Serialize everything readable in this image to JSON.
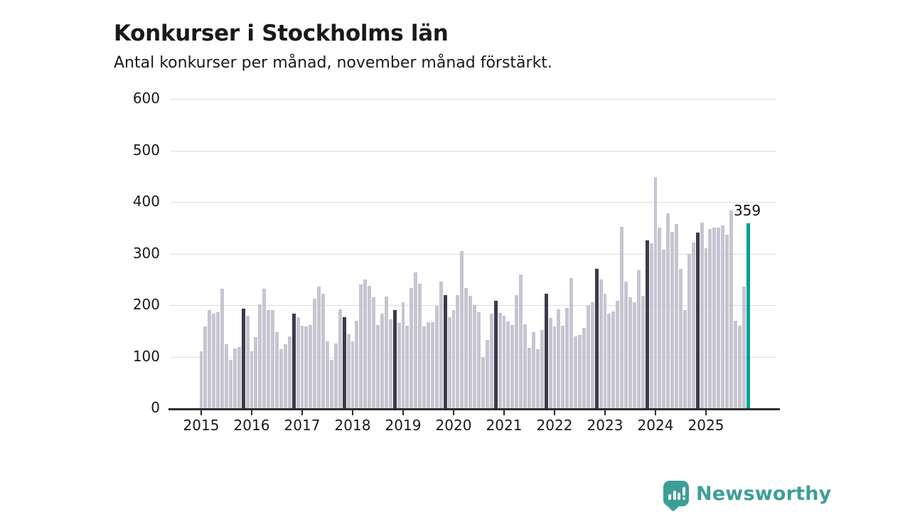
{
  "header": {
    "title": "Konkurser i Stockholms län",
    "subtitle": "Antal konkurser per månad, november månad förstärkt."
  },
  "footer": {
    "brand": "Newsworthy"
  },
  "colors": {
    "bar": "#c8c5d2",
    "november": "#3b3b4b",
    "highlight": "#00a099",
    "axis": "#2e2e2e",
    "grid": "#dcdcdc",
    "brand_teal": "#3d9e97",
    "text": "#1a1a1a"
  },
  "chart_data": {
    "type": "bar",
    "title": "Konkurser i Stockholms län",
    "subtitle": "Antal konkurser per månad, november månad förstärkt.",
    "ylabel": "",
    "xlabel": "",
    "ylim": [
      0,
      600
    ],
    "yticks": [
      0,
      100,
      200,
      300,
      400,
      500,
      600
    ],
    "xtick_years": [
      "2015",
      "2016",
      "2017",
      "2018",
      "2019",
      "2020",
      "2021",
      "2022",
      "2023",
      "2024",
      "2025"
    ],
    "grid": "horizontal",
    "legend": "none",
    "november_index": 10,
    "highlight": {
      "year": 2025,
      "month_index": 10,
      "value": 359,
      "label": "359"
    },
    "series": [
      {
        "year": 2015,
        "values": [
          110,
          158,
          190,
          184,
          186,
          232,
          124,
          94,
          116,
          118,
          193,
          180
        ]
      },
      {
        "year": 2016,
        "values": [
          110,
          138,
          202,
          232,
          190,
          191,
          148,
          114,
          124,
          139,
          183,
          176
        ]
      },
      {
        "year": 2017,
        "values": [
          160,
          158,
          161,
          212,
          236,
          222,
          129,
          94,
          125,
          192,
          177,
          143
        ]
      },
      {
        "year": 2018,
        "values": [
          130,
          170,
          240,
          250,
          237,
          215,
          162,
          183,
          217,
          172,
          190,
          165
        ]
      },
      {
        "year": 2019,
        "values": [
          205,
          160,
          233,
          264,
          242,
          159,
          167,
          167,
          198,
          245,
          219,
          176
        ]
      },
      {
        "year": 2020,
        "values": [
          190,
          219,
          305,
          233,
          218,
          200,
          186,
          98,
          133,
          183,
          208,
          185
        ]
      },
      {
        "year": 2021,
        "values": [
          179,
          168,
          161,
          220,
          260,
          163,
          117,
          148,
          115,
          152,
          222,
          175
        ]
      },
      {
        "year": 2022,
        "values": [
          158,
          192,
          160,
          195,
          253,
          139,
          142,
          156,
          198,
          205,
          270,
          250
        ]
      },
      {
        "year": 2023,
        "values": [
          222,
          184,
          188,
          208,
          352,
          246,
          215,
          206,
          267,
          218,
          325,
          320
        ]
      },
      {
        "year": 2024,
        "values": [
          448,
          350,
          308,
          378,
          342,
          357,
          270,
          190,
          300,
          322,
          341,
          360
        ]
      },
      {
        "year": 2025,
        "values": [
          310,
          348,
          351,
          350,
          355,
          337,
          384,
          170,
          160,
          236,
          359
        ]
      }
    ]
  }
}
